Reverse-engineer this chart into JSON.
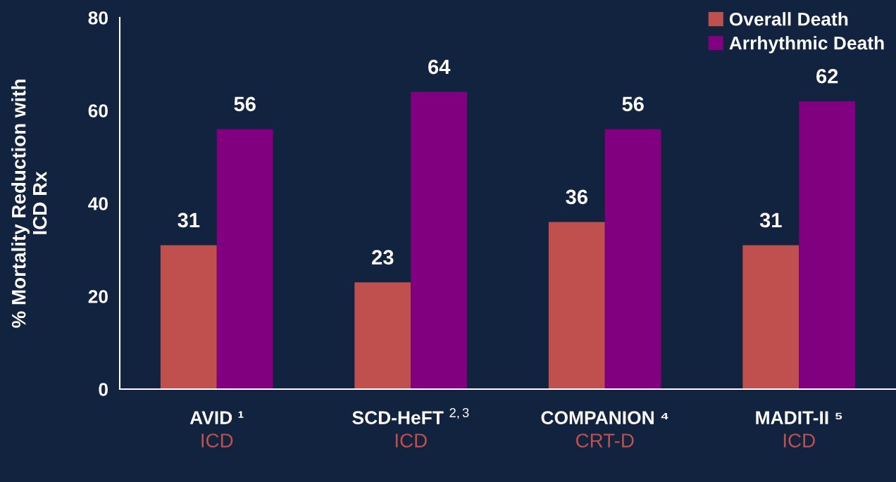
{
  "chart_data": {
    "type": "bar",
    "ylabel": "% Mortality Reduction with\nICD Rx",
    "categories": [
      "AVID ¹\nICD",
      "SCD-HeFT $^{2,3}$\nICD",
      "COMPANION ⁴\nCRT-D",
      "MADIT-II ⁵\nICD"
    ],
    "series": [
      {
        "name": "Overall Death",
        "color": "#c0504d",
        "values": [
          31,
          23,
          36,
          31
        ]
      },
      {
        "name": "Arrhythmic Death",
        "color": "#800080",
        "values": [
          56,
          64,
          56,
          62
        ]
      }
    ],
    "ylim": [
      0,
      80
    ],
    "yticks": [
      0,
      20,
      40,
      60,
      80
    ],
    "data_labels": true,
    "legend": "top right",
    "grid": false
  }
}
